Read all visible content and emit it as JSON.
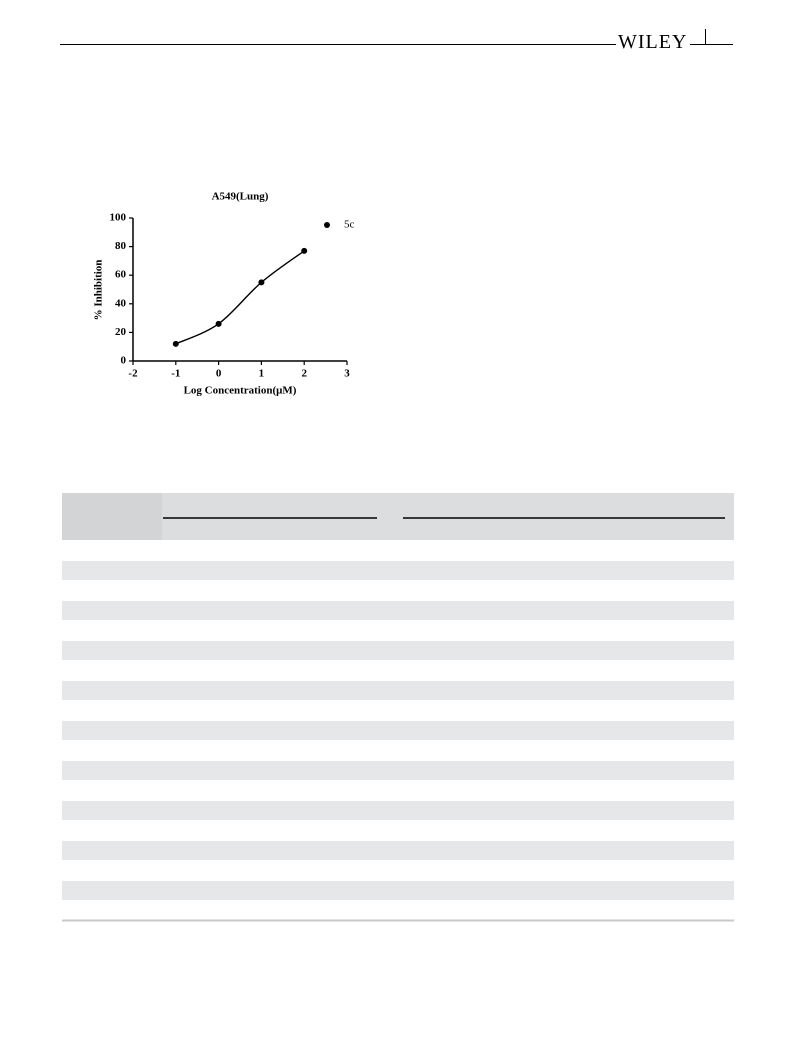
{
  "header": {
    "logo": "WILEY"
  },
  "chart_data": {
    "type": "scatter",
    "title": "A549(Lung)",
    "x_label": "Log Concentration(μM)",
    "y_label": "% Inhibition",
    "series": [
      {
        "name": "5c",
        "color": "#000000",
        "x": [
          -1,
          0,
          1,
          2
        ],
        "values": [
          12,
          26,
          55,
          77
        ]
      }
    ],
    "xlim": [
      -2,
      3
    ],
    "xticks": [
      -2,
      -1,
      0,
      1,
      2,
      3
    ],
    "ylim": [
      0,
      100
    ],
    "yticks": [
      0,
      20,
      40,
      60,
      80,
      100
    ],
    "fit_curve": true,
    "legend": "upper right"
  }
}
